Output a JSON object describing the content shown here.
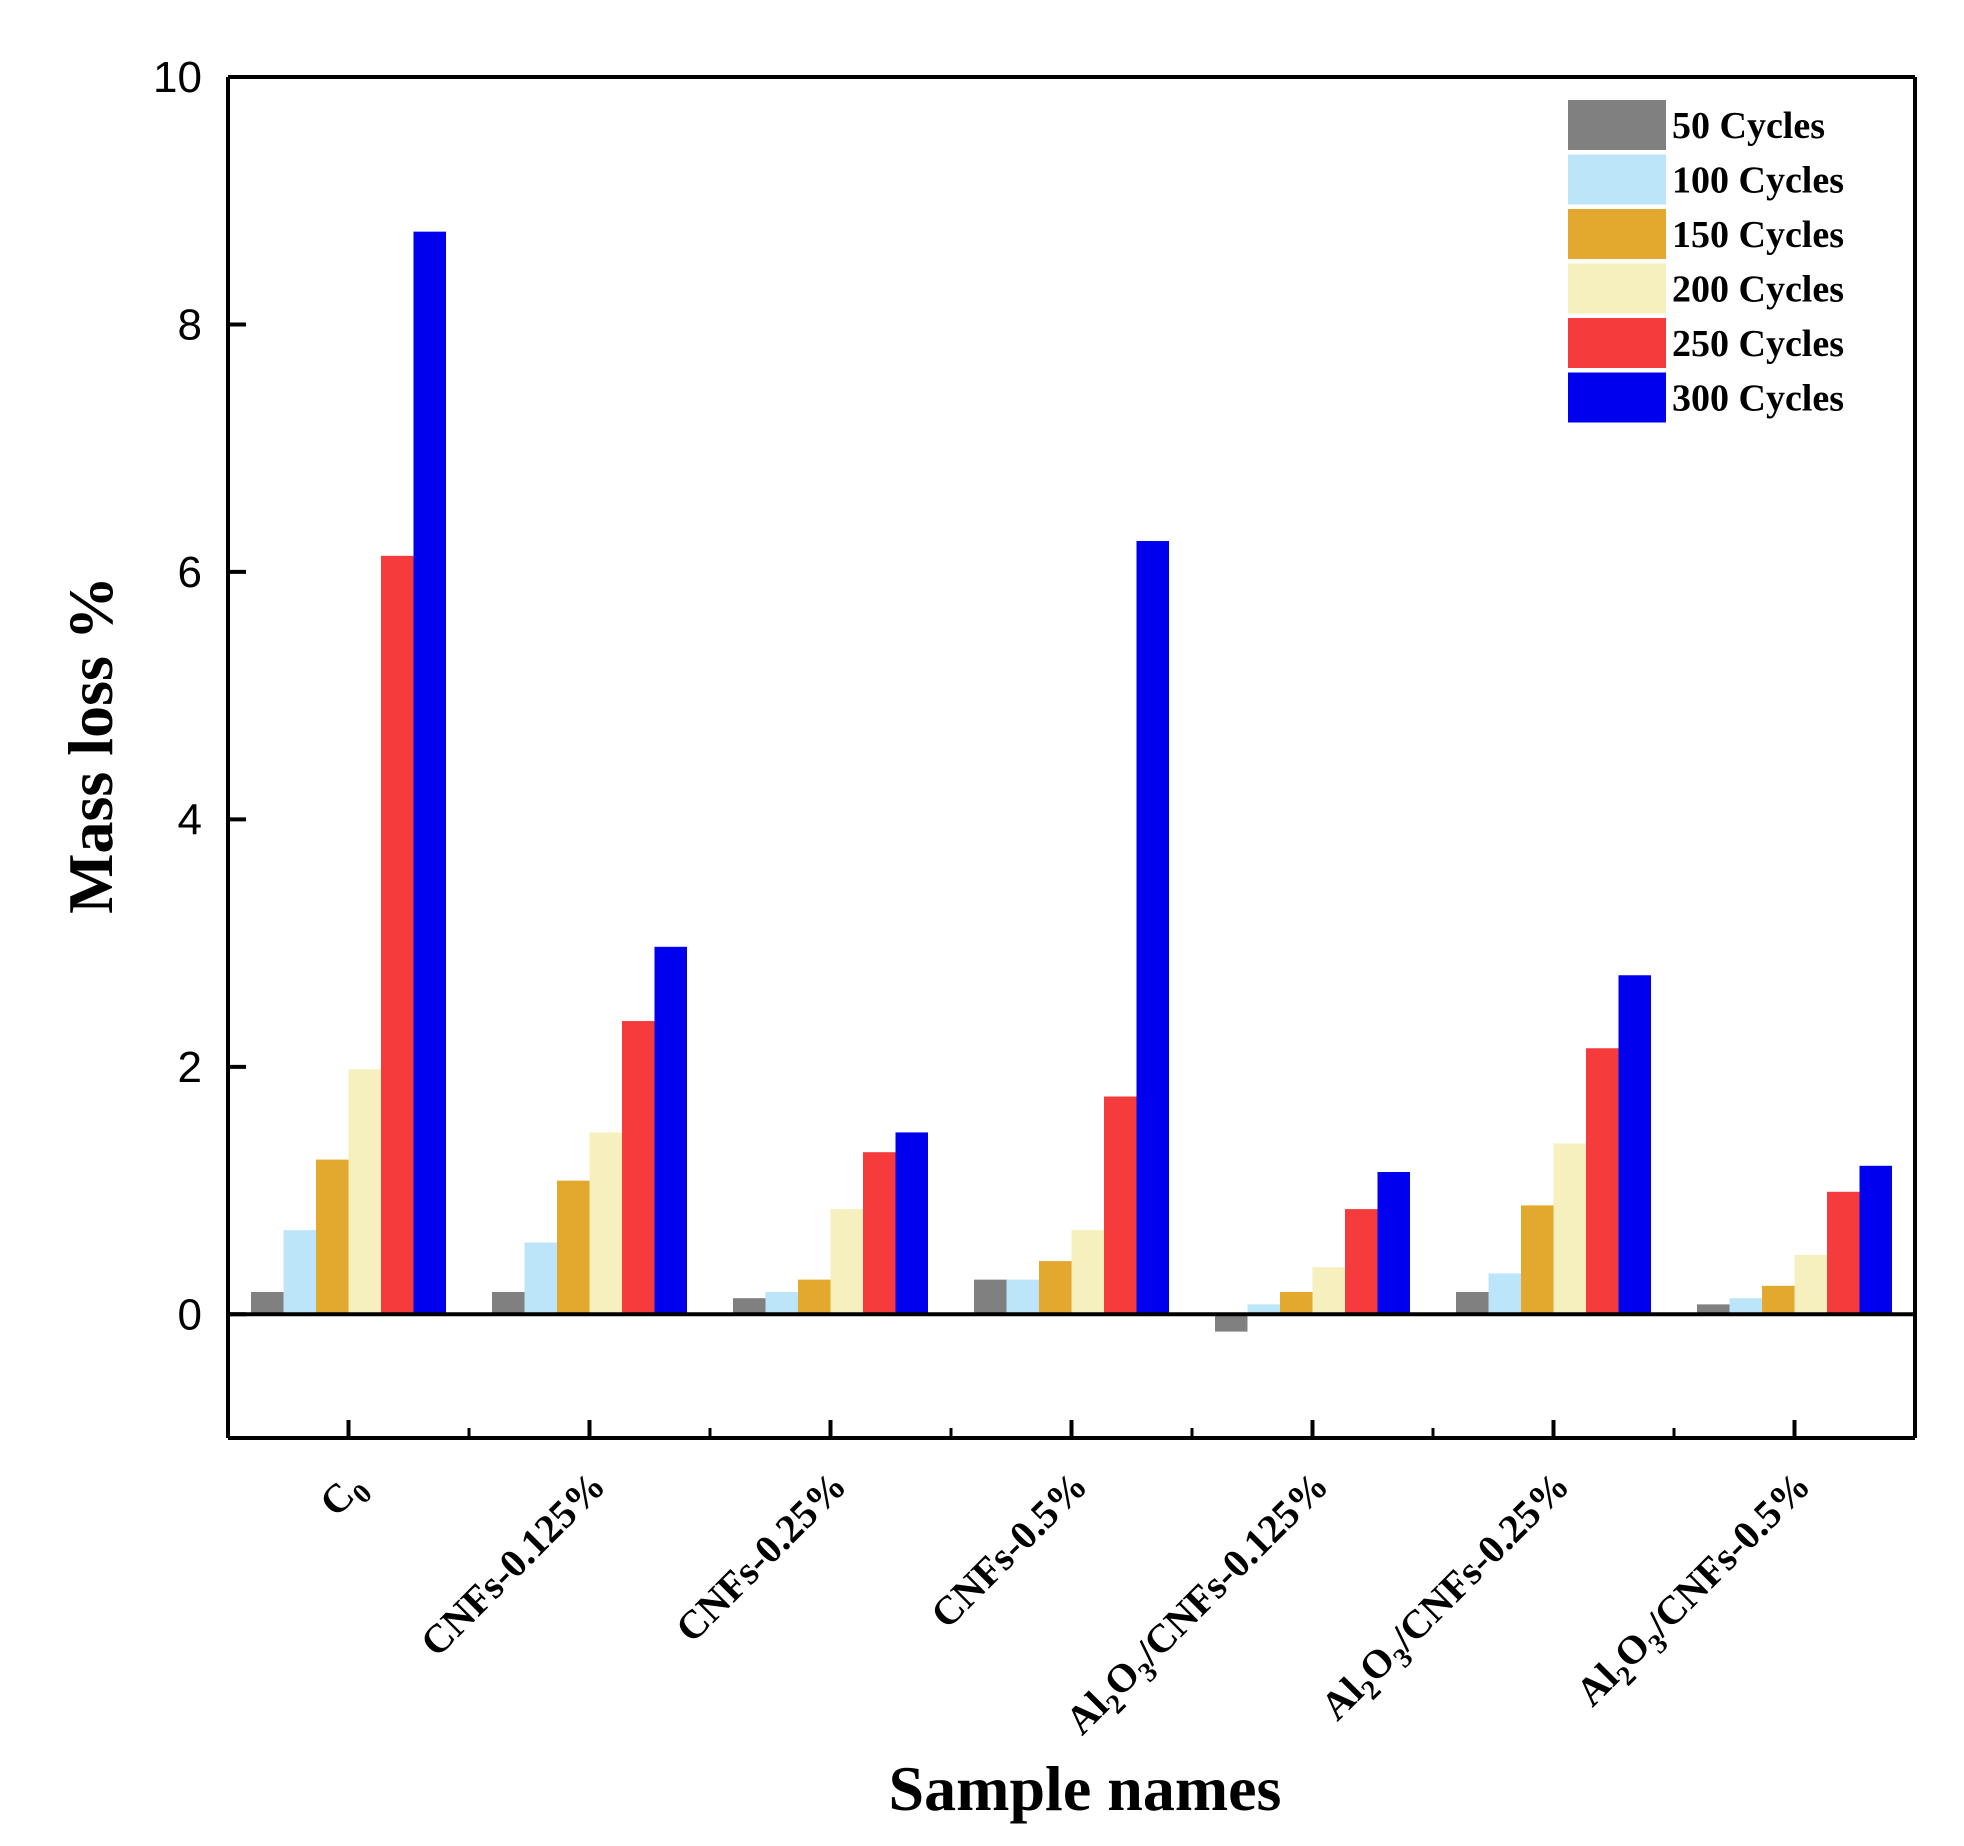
{
  "chart_data": {
    "type": "bar",
    "title": "",
    "xlabel": "Sample names",
    "ylabel": "Mass loss %",
    "ylim": [
      -1,
      10
    ],
    "yticks": [
      0,
      2,
      4,
      6,
      8,
      10
    ],
    "legend_position": "top-right",
    "categories": [
      {
        "name": "C0",
        "parts": [
          {
            "t": "C"
          },
          {
            "t": "0",
            "sub": true
          }
        ]
      },
      {
        "name": "CNFs-0.125%",
        "parts": [
          {
            "t": "CNFs-0.125%"
          }
        ]
      },
      {
        "name": "CNFs-0.25%",
        "parts": [
          {
            "t": "CNFs-0.25%"
          }
        ]
      },
      {
        "name": "CNFs-0.5%",
        "parts": [
          {
            "t": "CNFs-0.5%"
          }
        ]
      },
      {
        "name": "Al2O3/CNFs-0.125%",
        "parts": [
          {
            "t": "Al"
          },
          {
            "t": "2",
            "sub": true
          },
          {
            "t": "O"
          },
          {
            "t": "3",
            "sub": true
          },
          {
            "t": "/CNFs-0.125%"
          }
        ]
      },
      {
        "name": "Al2O3/CNFs-0.25%",
        "parts": [
          {
            "t": "Al"
          },
          {
            "t": "2",
            "sub": true
          },
          {
            "t": "O"
          },
          {
            "t": "3",
            "sub": true
          },
          {
            "t": "/CNFs-0.25%"
          }
        ]
      },
      {
        "name": "Al2O3/CNFs-0.5%",
        "parts": [
          {
            "t": "Al"
          },
          {
            "t": "2",
            "sub": true
          },
          {
            "t": "O"
          },
          {
            "t": "3",
            "sub": true
          },
          {
            "t": "/CNFs-0.5%"
          }
        ]
      }
    ],
    "series": [
      {
        "name": "50 Cycles",
        "color": "#808080",
        "values": [
          0.18,
          0.18,
          0.13,
          0.28,
          -0.14,
          0.18,
          0.08
        ]
      },
      {
        "name": "100 Cycles",
        "color": "#bde5fa",
        "values": [
          0.68,
          0.58,
          0.18,
          0.28,
          0.08,
          0.33,
          0.13
        ]
      },
      {
        "name": "150 Cycles",
        "color": "#e2a92e",
        "values": [
          1.25,
          1.08,
          0.28,
          0.43,
          0.18,
          0.88,
          0.23
        ]
      },
      {
        "name": "200 Cycles",
        "color": "#f6efbe",
        "values": [
          1.98,
          1.47,
          0.85,
          0.68,
          0.38,
          1.38,
          0.48
        ]
      },
      {
        "name": "250 Cycles",
        "color": "#f53b3b",
        "values": [
          6.13,
          2.37,
          1.31,
          1.76,
          0.85,
          2.15,
          0.99
        ]
      },
      {
        "name": "300 Cycles",
        "color": "#0000ee",
        "values": [
          8.75,
          2.97,
          1.47,
          6.25,
          1.15,
          2.74,
          1.2
        ]
      }
    ]
  }
}
